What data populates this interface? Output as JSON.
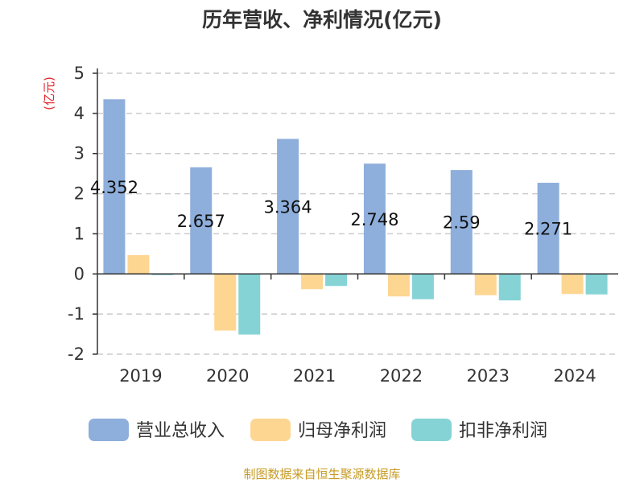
{
  "chart_data": {
    "type": "bar",
    "title": "历年营收、净利情况(亿元)",
    "ylabel": "(亿元)",
    "xlabel": "",
    "categories": [
      "2019",
      "2020",
      "2021",
      "2022",
      "2023",
      "2024"
    ],
    "ylim": [
      -2,
      5
    ],
    "yticks": [
      5,
      4,
      3,
      2,
      1,
      0,
      -1,
      -2
    ],
    "grid": true,
    "legend_position": "bottom",
    "series": [
      {
        "name": "营业总收入",
        "color": "#8eaedb",
        "values": [
          4.352,
          2.657,
          3.364,
          2.748,
          2.59,
          2.271
        ],
        "labels": [
          "4.352",
          "2.657",
          "3.364",
          "2.748",
          "2.59",
          "2.271"
        ]
      },
      {
        "name": "归母净利润",
        "color": "#fdd692",
        "values": [
          0.47,
          -1.41,
          -0.38,
          -0.56,
          -0.53,
          -0.5
        ]
      },
      {
        "name": "扣非净利润",
        "color": "#86d3d6",
        "values": [
          -0.03,
          -1.51,
          -0.3,
          -0.63,
          -0.66,
          -0.51
        ]
      }
    ]
  },
  "source_text": "制图数据来自恒生聚源数据库"
}
